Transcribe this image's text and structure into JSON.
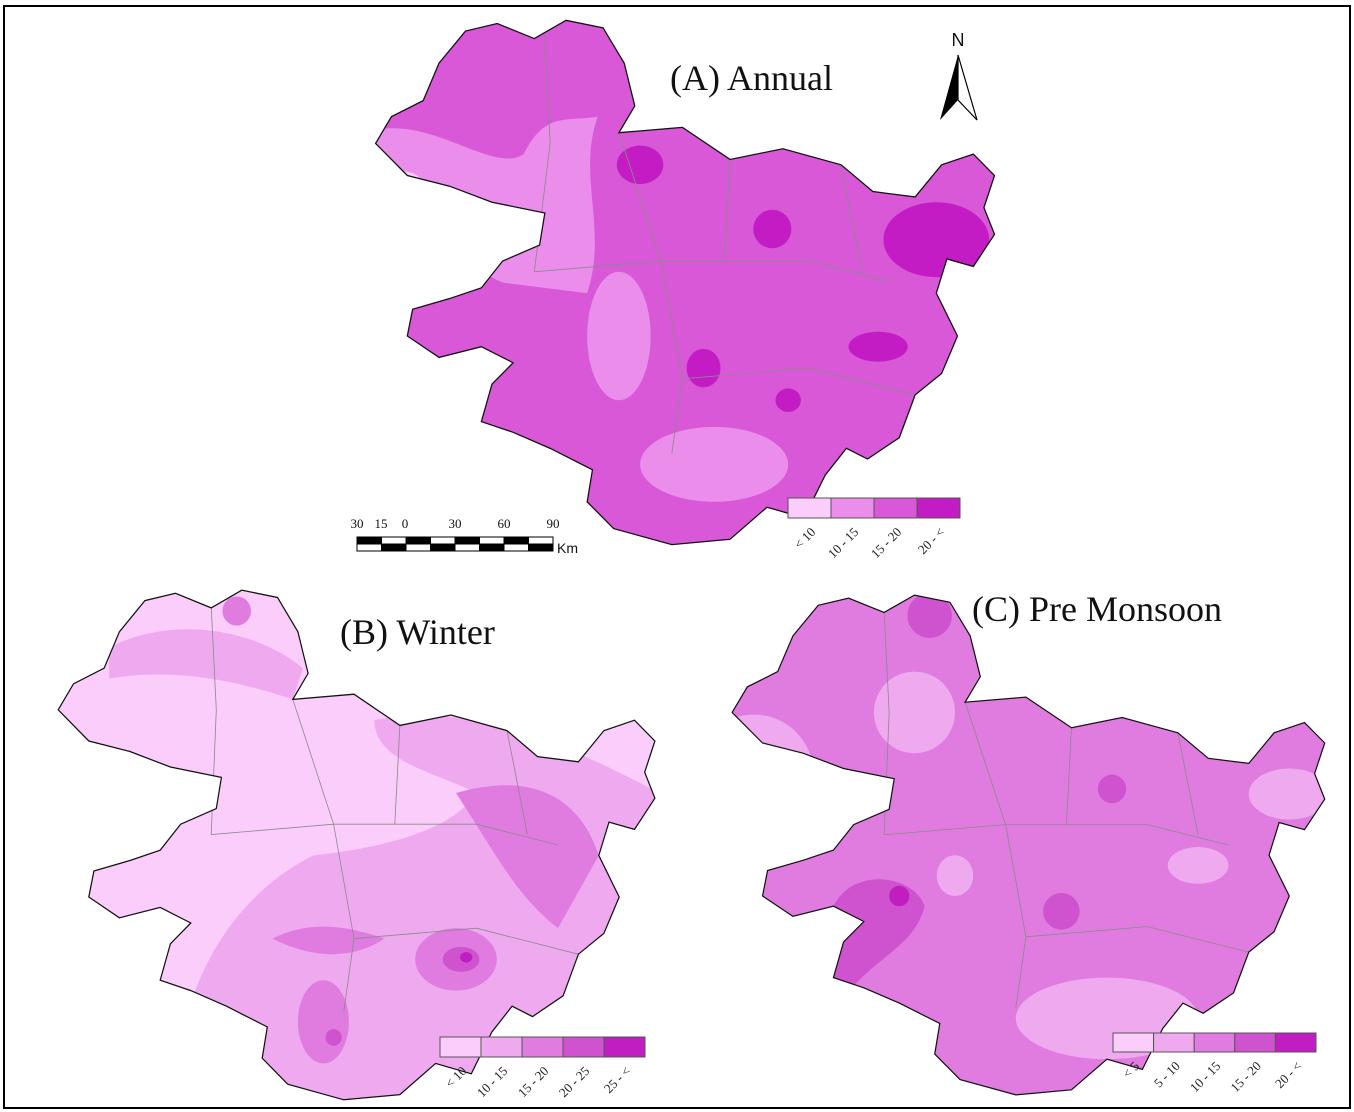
{
  "north": "N",
  "scale_bar": {
    "ticks": [
      "30",
      "15",
      "0",
      "30",
      "60",
      "90"
    ],
    "unit": "Km"
  },
  "panels": [
    {
      "title": "(A) Annual",
      "legend": [
        {
          "label": "< 10",
          "color": "#fbcdfb"
        },
        {
          "label": "10 - 15",
          "color": "#eb8eeb"
        },
        {
          "label": "15 - 20",
          "color": "#d858d8"
        },
        {
          "label": "20 - <",
          "color": "#c41cc4"
        }
      ]
    },
    {
      "title": "(B) Winter",
      "legend": [
        {
          "label": "< 10",
          "color": "#fbcdfb"
        },
        {
          "label": "10 - 15",
          "color": "#efaaef"
        },
        {
          "label": "15 - 20",
          "color": "#e07ce0"
        },
        {
          "label": "20 - 25",
          "color": "#cf52cf"
        },
        {
          "label": "25 - <",
          "color": "#c01ec0"
        }
      ]
    },
    {
      "title": "(C) Pre Monsoon",
      "legend": [
        {
          "label": "< 5",
          "color": "#fbcdfb"
        },
        {
          "label": "5 - 10",
          "color": "#efaaef"
        },
        {
          "label": "10 - 15",
          "color": "#e07ce0"
        },
        {
          "label": "15 - 20",
          "color": "#cf52cf"
        },
        {
          "label": "20 - <",
          "color": "#c01ec0"
        }
      ]
    }
  ]
}
